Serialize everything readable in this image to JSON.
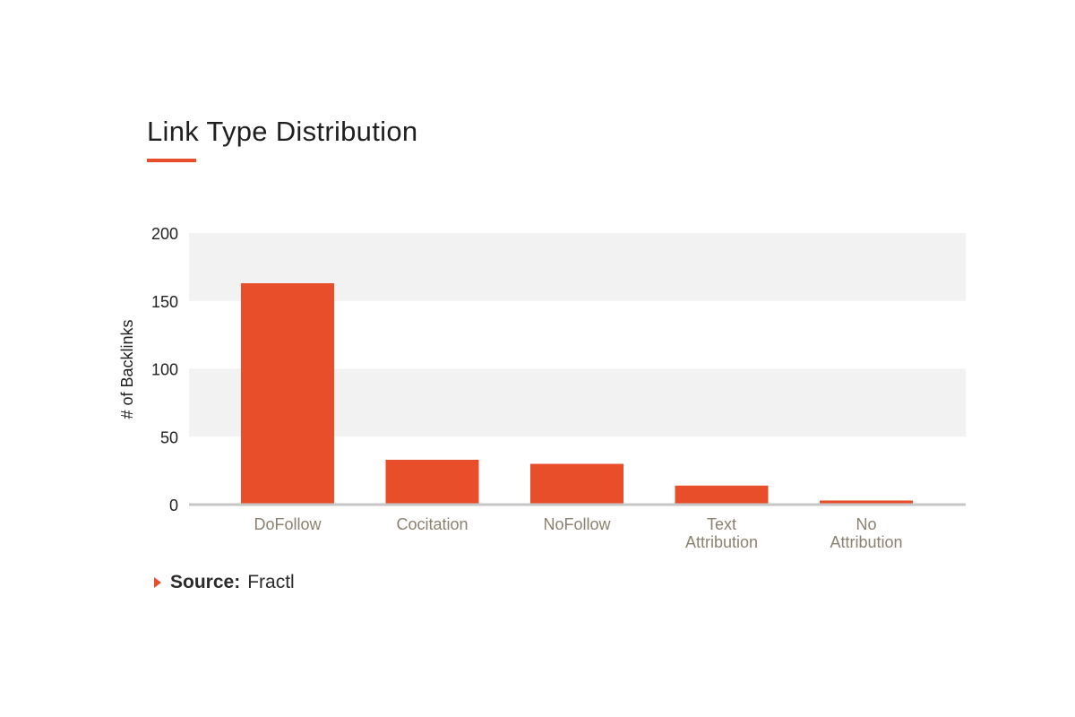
{
  "title": "Link Type Distribution",
  "source": {
    "label": "Source:",
    "value": "Fractl"
  },
  "colors": {
    "bar": "#e84e2a",
    "band": "#f2f2f2",
    "axis": "#c6c6c6",
    "tick_label": "#1f1f1f",
    "category_label": "#8b8170"
  },
  "chart_data": {
    "type": "bar",
    "title": "Link Type Distribution",
    "xlabel": "",
    "ylabel": "# of Backlinks",
    "ylim": [
      0,
      200
    ],
    "yticks": [
      0,
      50,
      100,
      150,
      200
    ],
    "grid": "alternating horizontal bands",
    "categories": [
      [
        "DoFollow"
      ],
      [
        "Cocitation"
      ],
      [
        "NoFollow"
      ],
      [
        "Text",
        "Attribution"
      ],
      [
        "No",
        "Attribution"
      ]
    ],
    "values": [
      163,
      33,
      30,
      14,
      3
    ]
  }
}
